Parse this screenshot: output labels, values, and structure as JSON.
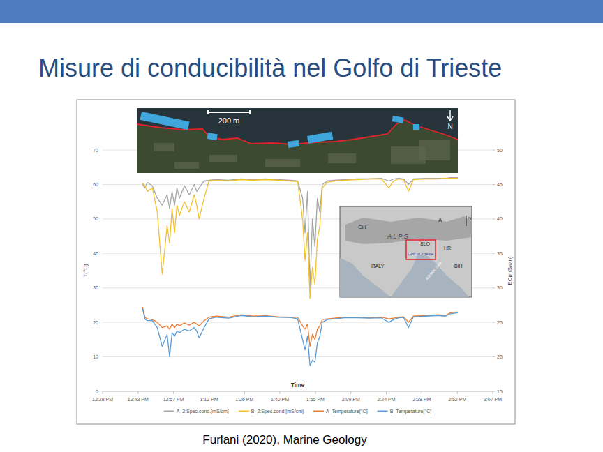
{
  "slide": {
    "title": "Misure di conducibilità nel Golfo di Trieste",
    "source": "Furlani (2020), Marine Geology"
  },
  "insets": {
    "satellite": {
      "scale_label": "200 m",
      "north": "N"
    },
    "map": {
      "labels": [
        "CH",
        "A",
        "A L P S",
        "SLO",
        "HR",
        "BIH",
        "ITALY",
        "Gulf of Trieste",
        "Adriatic Sea"
      ],
      "north": "N"
    }
  },
  "chart_data": {
    "type": "line",
    "x_label": "Time",
    "y_label": "T(°C)",
    "y2_label": "EC(mS/cm)",
    "x": [
      765,
      766,
      767,
      769,
      771,
      773,
      775,
      776,
      777,
      778,
      779,
      780,
      782,
      784,
      786,
      787,
      788,
      790,
      792,
      795,
      800,
      805,
      810,
      815,
      820,
      825,
      828,
      830,
      831,
      832,
      833,
      834,
      835,
      836,
      837,
      838,
      840,
      843,
      847,
      852,
      857,
      862,
      865,
      867,
      869,
      871,
      873,
      875,
      880,
      885,
      888,
      890,
      893
    ],
    "xlim": [
      748.8,
      907.2
    ],
    "xticks": [
      {
        "value": 748.8,
        "label": "12:28 PM"
      },
      {
        "value": 763.2,
        "label": "12:43 PM"
      },
      {
        "value": 777.6,
        "label": "12:57 PM"
      },
      {
        "value": 792,
        "label": "1:12 PM"
      },
      {
        "value": 806.4,
        "label": "1:26 PM"
      },
      {
        "value": 820.8,
        "label": "1:40 PM"
      },
      {
        "value": 835.2,
        "label": "1:55 PM"
      },
      {
        "value": 849.6,
        "label": "2:09 PM"
      },
      {
        "value": 864,
        "label": "2:24 PM"
      },
      {
        "value": 878.4,
        "label": "2:38 PM"
      },
      {
        "value": 892.8,
        "label": "2:52 PM"
      },
      {
        "value": 907.2,
        "label": "3:07 PM"
      }
    ],
    "ylim": [
      0,
      70
    ],
    "yticks": [
      0,
      10,
      20,
      30,
      40,
      50,
      60,
      70
    ],
    "y2lim": [
      15,
      50
    ],
    "y2ticks": [
      15,
      20,
      25,
      30,
      35,
      40,
      45,
      50
    ],
    "grid": true,
    "legend": "bottom",
    "series": [
      {
        "name": "A_2:Spec.cond.[mS/cm]",
        "color": "#a5a5a5",
        "axis": "y2",
        "values": [
          45.0,
          44.5,
          45.3,
          44.8,
          43.0,
          42.0,
          43.5,
          41.5,
          44.0,
          42.0,
          44.5,
          43.0,
          44.8,
          43.5,
          45.0,
          44.0,
          44.5,
          45.5,
          45.6,
          45.7,
          45.6,
          45.8,
          45.7,
          45.8,
          45.7,
          45.6,
          45.5,
          43.0,
          38.0,
          44.0,
          30.0,
          40.0,
          36.0,
          43.0,
          41.0,
          45.0,
          45.5,
          45.6,
          45.7,
          45.8,
          45.8,
          45.9,
          45.5,
          45.8,
          45.9,
          45.8,
          45.0,
          45.8,
          45.9,
          45.9,
          45.9,
          46.0,
          46.0
        ]
      },
      {
        "name": "B_2:Spec.cond.[mS/cm]",
        "color": "#f2c12e",
        "axis": "y2",
        "values": [
          45.2,
          44.8,
          44.0,
          44.5,
          41.0,
          32.0,
          39.0,
          36.5,
          41.5,
          38.0,
          42.0,
          40.5,
          42.5,
          41.0,
          43.5,
          42.0,
          40.0,
          43.0,
          45.5,
          45.6,
          45.5,
          45.7,
          45.6,
          45.7,
          45.6,
          45.5,
          45.4,
          40.0,
          34.0,
          38.0,
          28.5,
          33.0,
          30.5,
          37.0,
          39.0,
          44.5,
          45.3,
          45.5,
          45.6,
          45.7,
          45.8,
          45.8,
          44.5,
          45.5,
          45.8,
          45.7,
          44.0,
          45.7,
          45.8,
          45.8,
          45.9,
          45.9,
          45.9
        ]
      },
      {
        "name": "A_Temperature[°C]",
        "color": "#ed7d31",
        "values": [
          24.5,
          21.5,
          21.0,
          20.8,
          20.0,
          18.5,
          19.0,
          18.0,
          19.5,
          18.5,
          19.5,
          19.0,
          19.8,
          19.2,
          20.0,
          19.5,
          19.0,
          20.5,
          21.5,
          21.8,
          21.5,
          22.2,
          21.8,
          21.9,
          21.6,
          21.5,
          21.5,
          19.0,
          18.0,
          19.5,
          13.0,
          16.5,
          15.0,
          18.0,
          19.0,
          20.8,
          21.0,
          21.2,
          21.5,
          21.5,
          21.3,
          21.5,
          21.0,
          21.2,
          21.5,
          21.6,
          20.0,
          21.8,
          22.0,
          22.2,
          22.0,
          22.8,
          23.0
        ]
      },
      {
        "name": "B_Temperature[°C]",
        "color": "#5b9bd5",
        "values": [
          24.0,
          21.0,
          20.5,
          20.5,
          18.5,
          13.0,
          16.5,
          10.0,
          17.0,
          16.0,
          17.5,
          17.0,
          18.0,
          17.5,
          18.5,
          17.5,
          15.5,
          18.5,
          21.0,
          21.5,
          21.2,
          22.0,
          21.6,
          21.8,
          21.5,
          21.4,
          21.0,
          15.0,
          12.0,
          16.0,
          7.5,
          9.0,
          8.5,
          14.0,
          16.0,
          20.0,
          20.8,
          21.0,
          21.3,
          21.3,
          21.2,
          21.3,
          20.0,
          20.8,
          21.3,
          21.4,
          18.5,
          21.6,
          21.8,
          22.0,
          21.8,
          22.5,
          22.8
        ]
      }
    ]
  }
}
